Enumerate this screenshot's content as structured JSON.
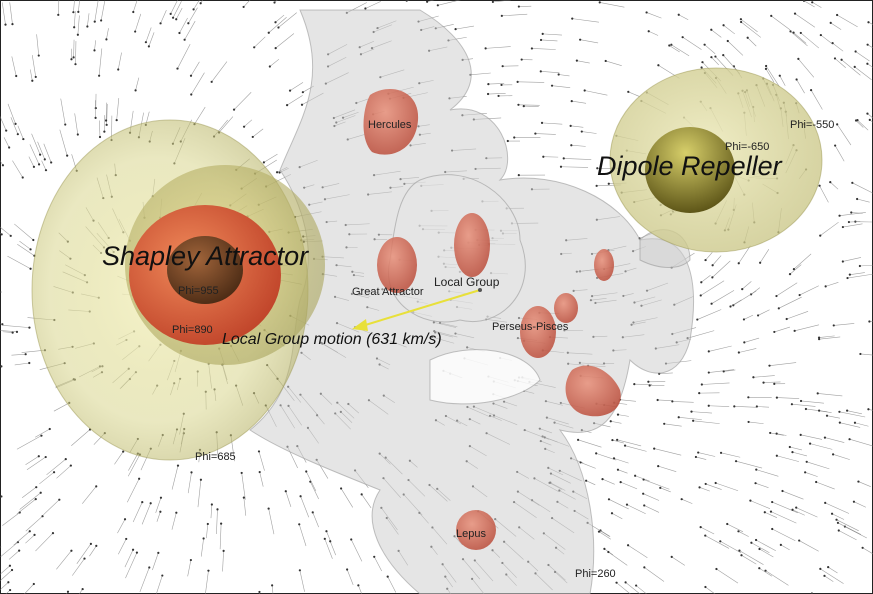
{
  "attractor": {
    "name": "Shapley Attractor",
    "contours": [
      "Phi=955",
      "Phi=890",
      "Phi=685"
    ]
  },
  "repeller": {
    "name": "Dipole Repeller",
    "contours": [
      "Phi=-650",
      "Phi=-550"
    ]
  },
  "structures": [
    "Hercules",
    "Great Attractor",
    "Local Group",
    "Perseus-Pisces",
    "Lepus"
  ],
  "motion": "Local Group motion (631 km/s)",
  "bottom_contour": "Phi=260"
}
